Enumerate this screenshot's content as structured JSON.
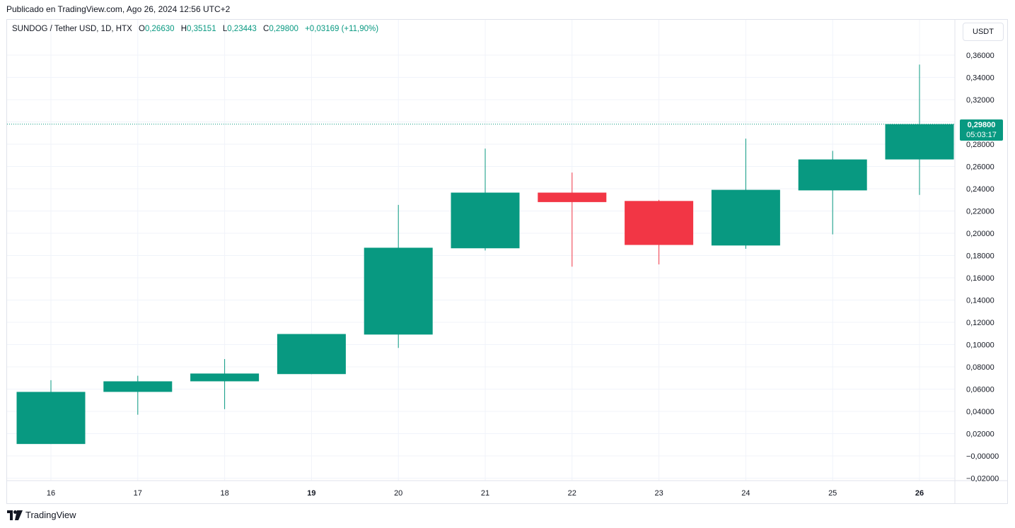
{
  "header": {
    "published": "Publicado en TradingView.com, Ago 26, 2024 12:56 UTC+2"
  },
  "legend": {
    "symbol": "SUNDOG / Tether USD, 1D, HTX",
    "o_label": "O",
    "o_value": "0,26630",
    "h_label": "H",
    "h_value": "0,35151",
    "l_label": "L",
    "l_value": "0,23443",
    "c_label": "C",
    "c_value": "0,29800",
    "change": "+0,03169 (+11,90%)"
  },
  "currency": "USDT",
  "last_price": {
    "price": "0,29800",
    "countdown": "05:03:17"
  },
  "footer": {
    "brand": "TradingView"
  },
  "colors": {
    "up": "#089981",
    "down": "#f23645",
    "grid": "#f0f3fa",
    "text": "#131722"
  },
  "chart_data": {
    "type": "candlestick",
    "x": [
      "16",
      "17",
      "18",
      "19",
      "20",
      "21",
      "22",
      "23",
      "24",
      "25",
      "26"
    ],
    "bold_ticks": [
      "19",
      "26"
    ],
    "candles": [
      {
        "o": 0.0107,
        "h": 0.068,
        "l": 0.0107,
        "c": 0.0575
      },
      {
        "o": 0.0575,
        "h": 0.072,
        "l": 0.037,
        "c": 0.067
      },
      {
        "o": 0.067,
        "h": 0.087,
        "l": 0.042,
        "c": 0.074
      },
      {
        "o": 0.0735,
        "h": 0.1095,
        "l": 0.0735,
        "c": 0.1095
      },
      {
        "o": 0.109,
        "h": 0.2255,
        "l": 0.097,
        "c": 0.187
      },
      {
        "o": 0.1865,
        "h": 0.276,
        "l": 0.1845,
        "c": 0.2365
      },
      {
        "o": 0.2365,
        "h": 0.2545,
        "l": 0.17,
        "c": 0.228
      },
      {
        "o": 0.229,
        "h": 0.23,
        "l": 0.172,
        "c": 0.1895
      },
      {
        "o": 0.189,
        "h": 0.285,
        "l": 0.186,
        "c": 0.239
      },
      {
        "o": 0.2385,
        "h": 0.274,
        "l": 0.199,
        "c": 0.2663
      },
      {
        "o": 0.2663,
        "h": 0.35151,
        "l": 0.23443,
        "c": 0.298
      }
    ],
    "y_ticks": [
      "0,36000",
      "0,34000",
      "0,32000",
      "0,30000",
      "0,28000",
      "0,26000",
      "0,24000",
      "0,22000",
      "0,20000",
      "0,18000",
      "0,16000",
      "0,14000",
      "0,12000",
      "0,10000",
      "0,08000",
      "0,06000",
      "0,04000",
      "0,02000",
      "−0,00000",
      "−0,02000"
    ],
    "y_tick_values": [
      0.36,
      0.34,
      0.32,
      0.3,
      0.28,
      0.26,
      0.24,
      0.22,
      0.2,
      0.18,
      0.16,
      0.14,
      0.12,
      0.1,
      0.08,
      0.06,
      0.04,
      0.02,
      0.0,
      -0.02
    ],
    "last_price_value": 0.298
  }
}
